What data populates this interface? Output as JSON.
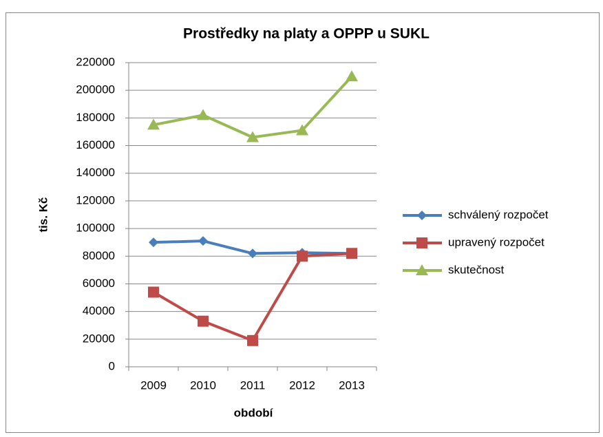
{
  "chart_data": {
    "type": "line",
    "title": "Prostředky na platy a OPPP u SUKL",
    "y_label": "tis. Kč",
    "x_label": "období",
    "categories": [
      "2009",
      "2010",
      "2011",
      "2012",
      "2013"
    ],
    "series": [
      {
        "name": "schválený rozpočet",
        "color": "#4a7ebb",
        "marker": "diamond",
        "values": [
          90000,
          91000,
          82000,
          82500,
          82000
        ]
      },
      {
        "name": "upravený rozpočet",
        "color": "#be4b48",
        "marker": "square",
        "values": [
          54000,
          33000,
          19000,
          80000,
          82000
        ]
      },
      {
        "name": "skutečnost",
        "color": "#98b954",
        "marker": "triangle",
        "values": [
          175000,
          182000,
          166000,
          171000,
          210000
        ]
      }
    ],
    "ylim": [
      0,
      220000
    ],
    "yticks": [
      0,
      20000,
      40000,
      60000,
      80000,
      100000,
      120000,
      140000,
      160000,
      180000,
      200000,
      220000
    ],
    "grid": true,
    "legend": "right"
  }
}
